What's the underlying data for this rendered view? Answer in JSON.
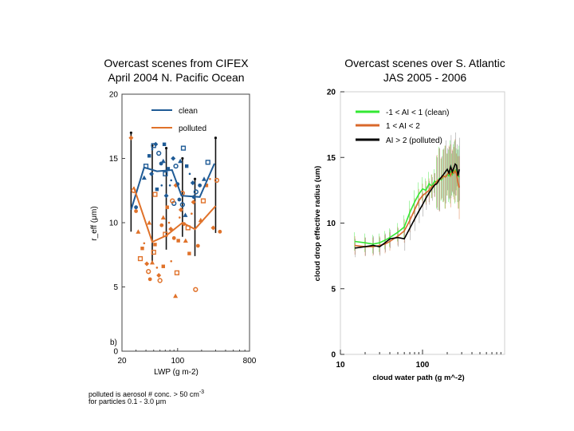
{
  "chart_data": [
    {
      "type": "scatter",
      "title": [
        "Overcast scenes from CIFEX",
        "April 2004 N. Pacific Ocean"
      ],
      "xlabel": "LWP (g m-2)",
      "ylabel": "r_eff (μm)",
      "xscale": "log",
      "xlim": [
        20,
        800
      ],
      "ylim": [
        0,
        20
      ],
      "xticks": [
        "20",
        "100",
        "800"
      ],
      "yticks": [
        "0",
        "5",
        "10",
        "15",
        "20"
      ],
      "panel_label": "b)",
      "legend_position": "top-right",
      "series": [
        {
          "name": "clean",
          "color": "#1f5b96",
          "line": {
            "x": [
              26,
              38,
              55,
              85,
              112,
              190,
              290
            ],
            "y": [
              11.0,
              14.3,
              14.0,
              14.1,
              12.1,
              12.0,
              14.6
            ]
          },
          "points": [
            [
              30,
              11.2
            ],
            [
              38,
              13.5
            ],
            [
              40,
              14.4
            ],
            [
              44,
              15.2
            ],
            [
              48,
              15.7
            ],
            [
              53,
              16.1
            ],
            [
              58,
              15.4
            ],
            [
              62,
              14.6
            ],
            [
              66,
              14.8
            ],
            [
              70,
              13.8
            ],
            [
              76,
              14.2
            ],
            [
              83,
              13.3
            ],
            [
              88,
              15.0
            ],
            [
              95,
              14.4
            ],
            [
              100,
              13.0
            ],
            [
              108,
              14.8
            ],
            [
              118,
              15.8
            ],
            [
              130,
              14.4
            ],
            [
              142,
              13.8
            ],
            [
              155,
              13.1
            ],
            [
              170,
              12.4
            ],
            [
              190,
              12.9
            ],
            [
              215,
              13.4
            ],
            [
              240,
              14.7
            ],
            [
              55,
              12.6
            ],
            [
              63,
              12.9
            ],
            [
              72,
              12.1
            ],
            [
              90,
              11.5
            ],
            [
              105,
              11.8
            ],
            [
              125,
              10.6
            ],
            [
              50,
              16.0
            ],
            [
              68,
              16.1
            ],
            [
              80,
              12.9
            ],
            [
              47,
              13.8
            ],
            [
              115,
              11.4
            ],
            [
              160,
              12.0
            ]
          ]
        },
        {
          "name": "polluted",
          "color": "#e0722a",
          "line": {
            "x": [
              28,
              48,
              72,
              115,
              165,
              300
            ],
            "y": [
              12.8,
              8.5,
              9.0,
              10.0,
              9.5,
              11.3
            ]
          },
          "points": [
            [
              26,
              16.6
            ],
            [
              28,
              12.5
            ],
            [
              30,
              10.9
            ],
            [
              32,
              9.3
            ],
            [
              34,
              7.2
            ],
            [
              36,
              8.0
            ],
            [
              38,
              8.4
            ],
            [
              41,
              6.8
            ],
            [
              43,
              6.2
            ],
            [
              45,
              5.6
            ],
            [
              48,
              6.9
            ],
            [
              50,
              7.7
            ],
            [
              52,
              8.3
            ],
            [
              55,
              6.5
            ],
            [
              58,
              5.9
            ],
            [
              60,
              5.5
            ],
            [
              63,
              9.8
            ],
            [
              66,
              10.4
            ],
            [
              70,
              9.1
            ],
            [
              74,
              11.2
            ],
            [
              78,
              10.0
            ],
            [
              82,
              9.5
            ],
            [
              86,
              11.7
            ],
            [
              90,
              8.8
            ],
            [
              94,
              4.3
            ],
            [
              98,
              6.1
            ],
            [
              102,
              8.6
            ],
            [
              106,
              10.4
            ],
            [
              110,
              11.0
            ],
            [
              115,
              12.3
            ],
            [
              120,
              9.9
            ],
            [
              126,
              8.6
            ],
            [
              135,
              9.6
            ],
            [
              140,
              7.6
            ],
            [
              150,
              10.7
            ],
            [
              158,
              11.6
            ],
            [
              168,
              4.8
            ],
            [
              180,
              8.2
            ],
            [
              195,
              10.2
            ],
            [
              210,
              11.7
            ],
            [
              230,
              12.9
            ],
            [
              255,
              13.4
            ],
            [
              280,
              9.6
            ],
            [
              310,
              13.3
            ],
            [
              340,
              9.3
            ],
            [
              44,
              10.0
            ],
            [
              52,
              12.2
            ],
            [
              66,
              6.6
            ],
            [
              83,
              7.0
            ],
            [
              95,
              12.9
            ]
          ]
        }
      ],
      "error_bars": [
        {
          "x": 26,
          "low": 9.3,
          "high": 17.0
        },
        {
          "x": 48,
          "low": 6.9,
          "high": 16.0
        },
        {
          "x": 72,
          "low": 7.9,
          "high": 15.8
        },
        {
          "x": 115,
          "low": 8.9,
          "high": 15.0
        },
        {
          "x": 165,
          "low": 7.4,
          "high": 13.4
        },
        {
          "x": 300,
          "low": 9.2,
          "high": 16.6
        }
      ]
    },
    {
      "type": "line",
      "title": [
        "Overcast scenes over S. Atlantic",
        "JAS 2005 - 2006"
      ],
      "xlabel": "cloud water path (g m^-2)",
      "ylabel": "cloud drop effective radius (um)",
      "xscale": "log",
      "xlim": [
        10,
        1000
      ],
      "ylim": [
        0,
        20
      ],
      "xticks": [
        "10",
        "100"
      ],
      "yticks": [
        "0",
        "5",
        "10",
        "15",
        "20"
      ],
      "legend_position": "top-left",
      "series": [
        {
          "name": "-1 < AI < 1 (clean)",
          "color": "#33e833",
          "x": [
            15,
            20,
            25,
            30,
            35,
            40,
            50,
            60,
            70,
            80,
            90,
            100,
            110,
            120,
            130,
            140,
            150,
            160,
            170,
            180,
            190,
            200,
            210,
            220,
            230,
            240,
            250,
            260,
            270,
            280
          ],
          "y": [
            8.6,
            8.5,
            8.4,
            8.5,
            8.7,
            8.9,
            9.3,
            9.7,
            10.8,
            11.6,
            12.2,
            12.6,
            12.5,
            13.0,
            12.8,
            13.2,
            13.1,
            13.4,
            13.3,
            13.6,
            13.5,
            13.7,
            13.6,
            13.9,
            13.7,
            14.0,
            13.9,
            14.1,
            13.6,
            13.5
          ]
        },
        {
          "name": "1 < AI < 2",
          "color": "#d9682b",
          "x": [
            15,
            20,
            25,
            30,
            35,
            40,
            50,
            60,
            70,
            80,
            90,
            100,
            110,
            120,
            130,
            140,
            150,
            160,
            170,
            180,
            190,
            200,
            210,
            220,
            230,
            240,
            250,
            260,
            270,
            280
          ],
          "y": [
            8.3,
            8.2,
            8.2,
            8.3,
            8.4,
            8.6,
            9.0,
            9.4,
            10.2,
            11.0,
            11.7,
            12.1,
            12.3,
            12.5,
            12.8,
            12.9,
            13.2,
            13.3,
            13.4,
            13.6,
            13.5,
            13.7,
            13.9,
            13.6,
            14.0,
            13.8,
            14.0,
            13.7,
            13.1,
            12.7
          ]
        },
        {
          "name": "AI > 2  (polluted)",
          "color": "#000000",
          "x": [
            15,
            20,
            25,
            30,
            35,
            40,
            50,
            60,
            70,
            80,
            90,
            100,
            110,
            120,
            130,
            140,
            150,
            160,
            170,
            180,
            190,
            200,
            210,
            220,
            230,
            240,
            250,
            260,
            270,
            280
          ],
          "y": [
            8.1,
            8.2,
            8.3,
            8.2,
            8.5,
            8.8,
            8.9,
            8.8,
            9.6,
            10.3,
            10.9,
            11.4,
            11.9,
            12.3,
            12.6,
            12.9,
            13.0,
            13.3,
            13.5,
            13.7,
            13.9,
            14.1,
            13.8,
            14.3,
            13.9,
            14.2,
            14.5,
            14.4,
            13.6,
            14.1
          ]
        }
      ]
    }
  ],
  "footnote": {
    "line1_text": "polluted is aerosol # conc. > 50 cm",
    "line1_sup": "-3",
    "line2_prefix": "for particles 0.1 - 3.0 ",
    "line2_unit": "μm"
  }
}
